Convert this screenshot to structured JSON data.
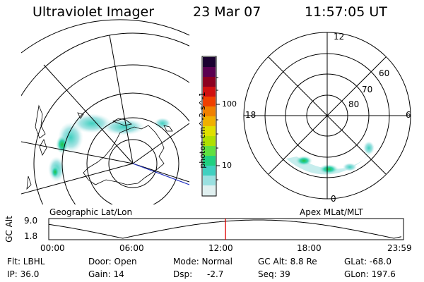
{
  "header": {
    "title": "Ultraviolet Imager",
    "date": "23 Mar 07",
    "time": "11:57:05 UT"
  },
  "left_panel": {
    "label": "Geographic Lat/Lon"
  },
  "right_panel": {
    "label": "Apex MLat/MLT",
    "mlt_labels": {
      "top": "12",
      "bottom": "0",
      "left": "18",
      "right": "6"
    },
    "lat_labels": [
      "60",
      "70",
      "80"
    ]
  },
  "colorbar": {
    "unit": "photon cm^-2 s^-1",
    "ticks": [
      "100",
      "10"
    ],
    "colors": [
      "#1a0030",
      "#5a0050",
      "#8c0020",
      "#d01010",
      "#f04000",
      "#f08000",
      "#f0b000",
      "#e0e000",
      "#b0e000",
      "#60e040",
      "#20d080",
      "#40d0c0",
      "#9ae0e0",
      "#e0f0f0"
    ]
  },
  "altitude_plot": {
    "ylabel": "GC Alt",
    "yticks": [
      "9.0",
      "1.8"
    ],
    "xticks": [
      "00:00",
      "06:00",
      "12:00",
      "18:00",
      "23:59"
    ],
    "current_marker_time": "11:57"
  },
  "info": {
    "filter": "Flt: LBHL",
    "ip": "IP: 36.0",
    "door": "Door: Open",
    "gain": "Gain: 14",
    "mode": "Mode: Normal",
    "dsp": "Dsp:",
    "dsp_value": "-2.7",
    "gc_alt": "GC Alt: 8.8 Re",
    "seq": "Seq: 39",
    "glat": "GLat: -68.0",
    "glon": "GLon: 197.6"
  }
}
